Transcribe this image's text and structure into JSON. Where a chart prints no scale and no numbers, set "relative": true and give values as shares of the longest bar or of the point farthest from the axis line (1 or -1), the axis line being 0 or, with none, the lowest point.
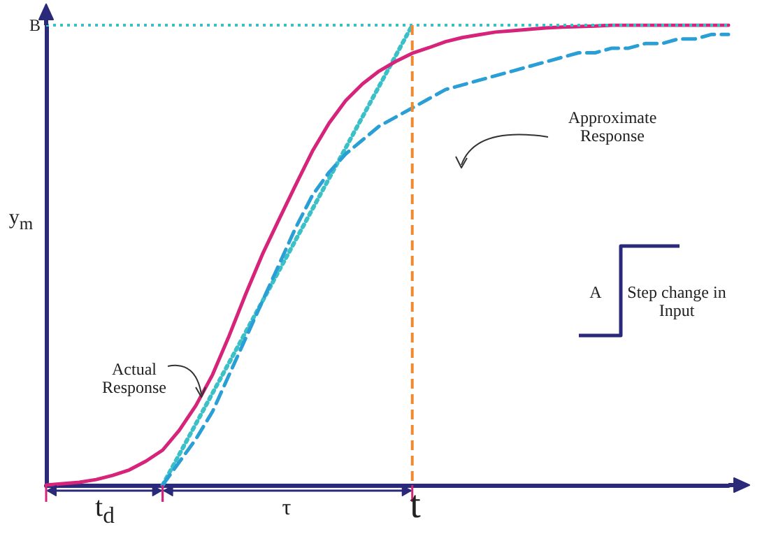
{
  "chart_data": {
    "type": "line",
    "relative": true,
    "ylabel": "y$_{m}$",
    "marker": "none",
    "categories": [
      null,
      null,
      null,
      null,
      null,
      null,
      null,
      null,
      null,
      null,
      null,
      null,
      null,
      null,
      null,
      null,
      null,
      null,
      null,
      null,
      null,
      null,
      null,
      null,
      null,
      null,
      null,
      null,
      null,
      null,
      null,
      null,
      null,
      null,
      null,
      null,
      null,
      null,
      null,
      null,
      null,
      null
    ],
    "series": [
      {
        "color": "#d6247a",
        "line_style": "solid",
        "values": [
          0,
          0.003,
          0.006,
          0.012,
          0.021,
          0.033,
          0.052,
          0.076,
          0.119,
          0.173,
          0.24,
          0.325,
          0.416,
          0.502,
          0.578,
          0.653,
          0.726,
          0.787,
          0.836,
          0.872,
          0.9,
          0.921,
          0.939,
          0.951,
          0.964,
          0.973,
          0.979,
          0.985,
          0.988,
          0.991,
          0.994,
          0.996,
          0.997,
          0.998,
          1,
          1,
          1,
          1,
          1,
          1,
          1,
          1
        ]
      },
      {
        "color": "#2a9fd6",
        "line_style": "dashed",
        "values": [
          null,
          null,
          null,
          null,
          null,
          null,
          null,
          0,
          0.05,
          0.1,
          0.16,
          0.24,
          0.32,
          0.4,
          0.48,
          0.56,
          0.63,
          0.68,
          0.72,
          0.75,
          0.78,
          0.8,
          0.82,
          0.84,
          0.86,
          0.87,
          0.88,
          0.89,
          0.9,
          0.91,
          0.92,
          0.93,
          0.94,
          0.94,
          0.95,
          0.95,
          0.96,
          0.96,
          0.97,
          0.97,
          0.98,
          0.98
        ]
      },
      {
        "color": "#3cc0c8",
        "line_style": "dotted",
        "values": [
          null,
          null,
          null,
          null,
          null,
          null,
          null,
          0,
          null,
          null,
          null,
          null,
          null,
          null,
          null,
          null,
          null,
          null,
          null,
          null,
          null,
          null,
          1,
          null,
          null,
          null,
          null,
          null,
          null,
          null,
          null,
          null,
          null,
          null,
          null,
          null,
          null,
          null,
          null,
          null,
          null,
          null
        ]
      }
    ],
    "ref_lines": [
      {
        "axis": "y",
        "value": 1,
        "label": "B",
        "color": "#3cc0c8",
        "line_style": "dotted"
      }
    ],
    "annotations": [
      "Approximate Response",
      "Actual Response",
      "t$_{d}$",
      "τ",
      "A",
      "Step change in Input",
      "t"
    ]
  }
}
